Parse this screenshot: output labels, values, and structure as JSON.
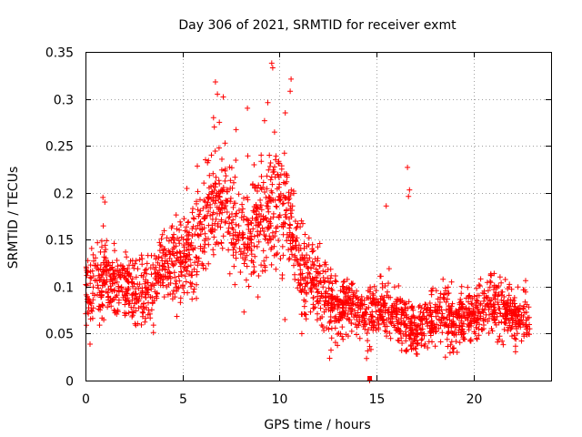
{
  "colors": {
    "series": "#ff0000",
    "axis": "#000000",
    "grid": "#a0a0a0",
    "background": "#ffffff"
  },
  "chart_data": {
    "type": "scatter",
    "title": "Day 306 of 2021, SRMTID for receiver exmt",
    "xlabel": "GPS time / hours",
    "ylabel": "SRMTID / TECUs",
    "xlim": [
      0,
      24
    ],
    "ylim": [
      0,
      0.35
    ],
    "xticks": [
      0,
      5,
      10,
      15,
      20
    ],
    "xtick_labels": [
      "0",
      "5",
      "10",
      "15",
      "20"
    ],
    "yticks": [
      0,
      0.05,
      0.1,
      0.15,
      0.2,
      0.25,
      0.3,
      0.35
    ],
    "ytick_labels": [
      "0",
      "0.05",
      "0.1",
      "0.15",
      "0.2",
      "0.25",
      "0.3",
      "0.35"
    ],
    "grid": true,
    "marker": "plus",
    "series": [
      {
        "name": "SRMTID",
        "color": "#ff0000",
        "x_range": [
          0.0,
          22.9
        ],
        "trend_x": [
          0,
          0.5,
          1,
          1.5,
          2,
          2.5,
          3,
          3.5,
          4,
          4.5,
          5,
          5.5,
          6,
          6.5,
          7,
          7.5,
          8,
          8.5,
          9,
          9.5,
          10,
          10.5,
          11,
          11.5,
          12,
          12.5,
          13,
          13.5,
          14,
          14.5,
          15,
          15.5,
          16,
          16.5,
          17,
          17.5,
          18,
          18.5,
          19,
          19.5,
          20,
          20.5,
          21,
          21.5,
          22,
          22.5,
          23
        ],
        "trend_y": [
          0.095,
          0.105,
          0.11,
          0.105,
          0.1,
          0.095,
          0.09,
          0.1,
          0.125,
          0.125,
          0.13,
          0.145,
          0.16,
          0.19,
          0.18,
          0.175,
          0.16,
          0.155,
          0.175,
          0.185,
          0.19,
          0.175,
          0.13,
          0.105,
          0.1,
          0.085,
          0.075,
          0.08,
          0.075,
          0.07,
          0.075,
          0.075,
          0.07,
          0.065,
          0.055,
          0.06,
          0.065,
          0.07,
          0.06,
          0.065,
          0.07,
          0.075,
          0.08,
          0.085,
          0.07,
          0.065,
          0.065
        ],
        "spread_y": [
          0.03,
          0.035,
          0.035,
          0.03,
          0.03,
          0.03,
          0.03,
          0.035,
          0.035,
          0.035,
          0.04,
          0.045,
          0.05,
          0.055,
          0.05,
          0.05,
          0.05,
          0.05,
          0.055,
          0.06,
          0.06,
          0.05,
          0.04,
          0.035,
          0.035,
          0.03,
          0.025,
          0.025,
          0.025,
          0.025,
          0.025,
          0.025,
          0.025,
          0.025,
          0.02,
          0.025,
          0.025,
          0.025,
          0.025,
          0.025,
          0.025,
          0.025,
          0.03,
          0.03,
          0.025,
          0.025,
          0.025
        ],
        "notable_points": [
          {
            "x": 9.6,
            "y": 0.338
          },
          {
            "x": 9.65,
            "y": 0.333
          },
          {
            "x": 6.7,
            "y": 0.318
          },
          {
            "x": 10.6,
            "y": 0.321
          },
          {
            "x": 10.55,
            "y": 0.308
          },
          {
            "x": 9.4,
            "y": 0.296
          },
          {
            "x": 6.8,
            "y": 0.305
          },
          {
            "x": 7.1,
            "y": 0.302
          },
          {
            "x": 8.35,
            "y": 0.29
          },
          {
            "x": 10.3,
            "y": 0.285
          },
          {
            "x": 6.6,
            "y": 0.28
          },
          {
            "x": 6.9,
            "y": 0.275
          },
          {
            "x": 16.6,
            "y": 0.227
          },
          {
            "x": 16.7,
            "y": 0.203
          },
          {
            "x": 16.65,
            "y": 0.196
          },
          {
            "x": 15.5,
            "y": 0.186
          },
          {
            "x": 0.9,
            "y": 0.195
          },
          {
            "x": 1.0,
            "y": 0.19
          },
          {
            "x": 14.65,
            "y": 0.0
          }
        ],
        "point_count": 2400
      }
    ]
  }
}
